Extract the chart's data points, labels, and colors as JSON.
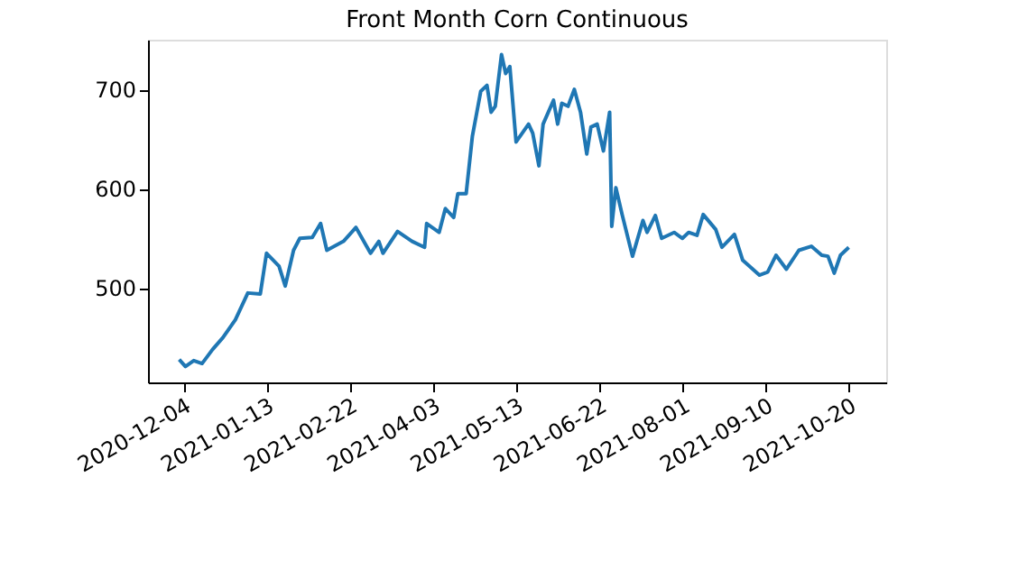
{
  "chart_data": {
    "type": "line",
    "title": "Front Month Corn Continuous",
    "x": [
      "2020-12-02",
      "2020-12-05",
      "2020-12-09",
      "2020-12-13",
      "2020-12-18",
      "2020-12-23",
      "2020-12-29",
      "2021-01-04",
      "2021-01-10",
      "2021-01-13",
      "2021-01-19",
      "2021-01-22",
      "2021-01-26",
      "2021-01-29",
      "2021-02-04",
      "2021-02-08",
      "2021-02-11",
      "2021-02-19",
      "2021-02-25",
      "2021-03-04",
      "2021-03-08",
      "2021-03-10",
      "2021-03-17",
      "2021-03-24",
      "2021-03-30",
      "2021-03-31",
      "2021-04-06",
      "2021-04-09",
      "2021-04-13",
      "2021-04-15",
      "2021-04-19",
      "2021-04-22",
      "2021-04-26",
      "2021-04-29",
      "2021-05-01",
      "2021-05-03",
      "2021-05-06",
      "2021-05-08",
      "2021-05-10",
      "2021-05-13",
      "2021-05-19",
      "2021-05-21",
      "2021-05-24",
      "2021-05-26",
      "2021-05-31",
      "2021-06-02",
      "2021-06-04",
      "2021-06-07",
      "2021-06-10",
      "2021-06-13",
      "2021-06-16",
      "2021-06-18",
      "2021-06-21",
      "2021-06-24",
      "2021-06-27",
      "2021-06-28",
      "2021-06-30",
      "2021-07-03",
      "2021-07-08",
      "2021-07-13",
      "2021-07-15",
      "2021-07-19",
      "2021-07-22",
      "2021-07-28",
      "2021-08-01",
      "2021-08-04",
      "2021-08-08",
      "2021-08-11",
      "2021-08-17",
      "2021-08-20",
      "2021-08-26",
      "2021-08-30",
      "2021-09-07",
      "2021-09-11",
      "2021-09-15",
      "2021-09-20",
      "2021-09-26",
      "2021-10-02",
      "2021-10-07",
      "2021-10-10",
      "2021-10-13",
      "2021-10-16",
      "2021-10-20"
    ],
    "series": [
      {
        "color": "#1f77b4",
        "values": [
          428,
          421,
          427,
          424,
          438,
          450,
          468,
          495,
          494,
          535,
          522,
          502,
          538,
          550,
          551,
          565,
          538,
          547,
          561,
          535,
          547,
          535,
          557,
          547,
          541,
          565,
          556,
          580,
          571,
          595,
          595,
          653,
          698,
          704,
          677,
          683,
          735,
          716,
          723,
          647,
          665,
          656,
          623,
          665,
          689,
          665,
          686,
          683,
          700,
          677,
          635,
          662,
          665,
          638,
          677,
          562,
          601,
          574,
          532,
          568,
          556,
          573,
          550,
          556,
          550,
          556,
          553,
          574,
          559,
          541,
          554,
          528,
          513,
          516,
          533,
          519,
          538,
          542,
          533,
          532,
          515,
          533,
          541
        ]
      }
    ],
    "xlim": [
      "2020-11-17",
      "2021-11-07"
    ],
    "xticks": [
      {
        "value": "2020-12-04",
        "label": "2020-12-04"
      },
      {
        "value": "2021-01-13",
        "label": "2021-01-13"
      },
      {
        "value": "2021-02-22",
        "label": "2021-02-22"
      },
      {
        "value": "2021-04-03",
        "label": "2021-04-03"
      },
      {
        "value": "2021-05-13",
        "label": "2021-05-13"
      },
      {
        "value": "2021-06-22",
        "label": "2021-06-22"
      },
      {
        "value": "2021-08-01",
        "label": "2021-08-01"
      },
      {
        "value": "2021-09-10",
        "label": "2021-09-10"
      },
      {
        "value": "2021-10-20",
        "label": "2021-10-20"
      }
    ],
    "ylim": [
      405,
      750
    ],
    "yticks": [
      500,
      600,
      700
    ],
    "grid": false,
    "line_style": "solid",
    "marker": "none",
    "legend": false
  }
}
